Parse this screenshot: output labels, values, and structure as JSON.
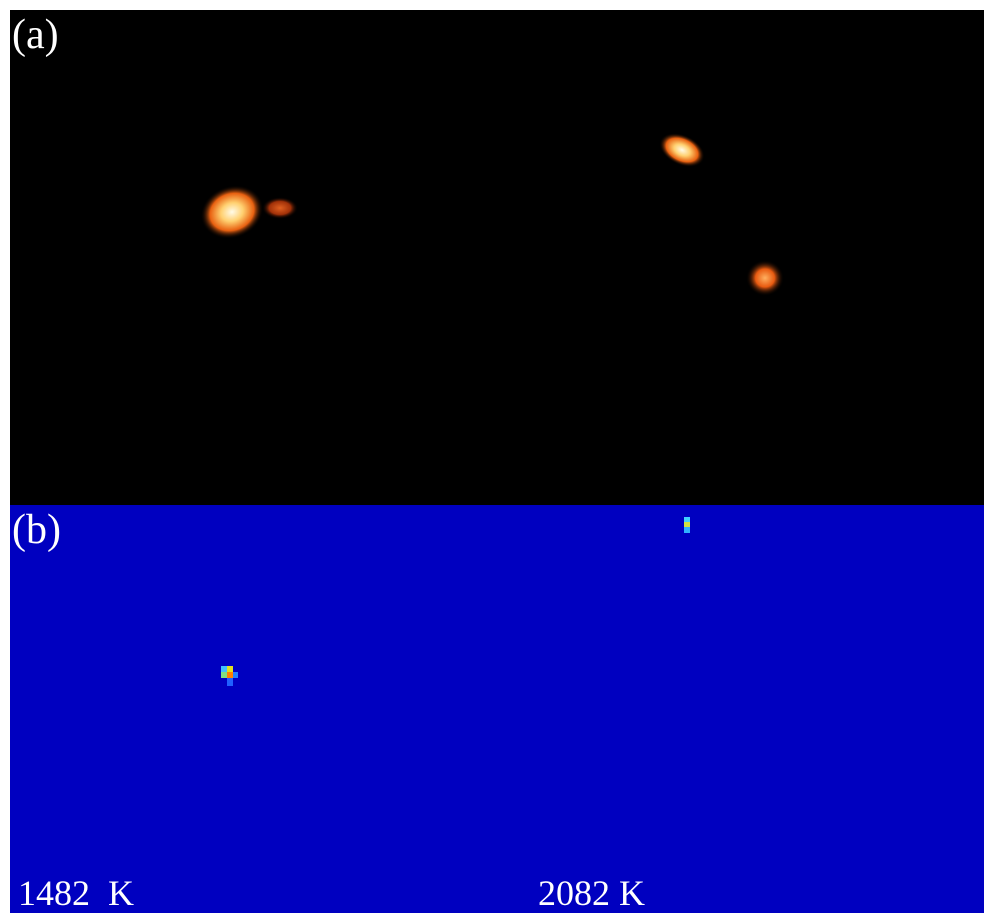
{
  "panels": [
    {
      "label": "(a)"
    },
    {
      "label": "(b)",
      "annotations": [
        "1482  K",
        "2082 K"
      ]
    }
  ]
}
